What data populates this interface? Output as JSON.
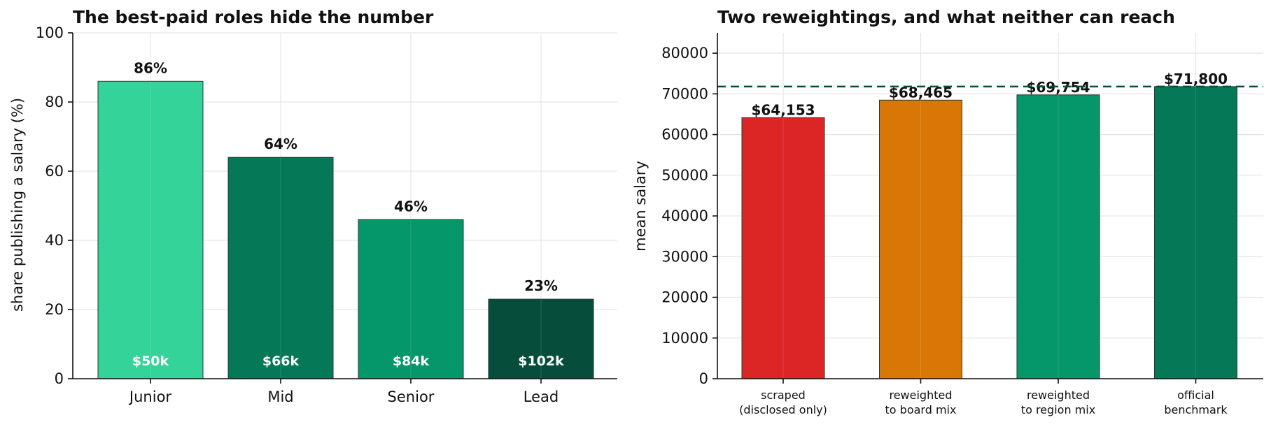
{
  "chart_data": [
    {
      "type": "bar",
      "title": "The best-paid roles hide the number",
      "xlabel": "",
      "ylabel": "share publishing a salary (%)",
      "ylim": [
        0,
        100
      ],
      "yticks": [
        "0",
        "20",
        "40",
        "60",
        "80",
        "100"
      ],
      "grid": true,
      "categories": [
        "Junior",
        "Mid",
        "Senior",
        "Lead"
      ],
      "values": [
        86,
        64,
        46,
        23
      ],
      "value_labels": [
        "86%",
        "64%",
        "46%",
        "23%"
      ],
      "inner_labels": [
        "$50k",
        "$66k",
        "$84k",
        "$102k"
      ],
      "colors": [
        "#34d399",
        "#047857",
        "#059669",
        "#064e3b"
      ]
    },
    {
      "type": "bar",
      "title": "Two reweightings, and what neither can reach",
      "xlabel": "",
      "ylabel": "mean salary",
      "ylim": [
        0,
        85000
      ],
      "yticks": [
        "0",
        "10000",
        "20000",
        "30000",
        "40000",
        "50000",
        "60000",
        "70000",
        "80000"
      ],
      "grid": true,
      "categories": [
        [
          "scraped",
          "(disclosed only)"
        ],
        [
          "reweighted",
          "to board mix"
        ],
        [
          "reweighted",
          "to region mix"
        ],
        [
          "official",
          "benchmark"
        ]
      ],
      "values": [
        64153,
        68465,
        69754,
        71800
      ],
      "value_labels": [
        "$64,153",
        "$68,465",
        "$69,754",
        "$71,800"
      ],
      "colors": [
        "#dc2626",
        "#d97706",
        "#059669",
        "#047857"
      ],
      "reference_line": {
        "value": 71800,
        "style": "dashed",
        "color": "#064e3b"
      }
    }
  ]
}
